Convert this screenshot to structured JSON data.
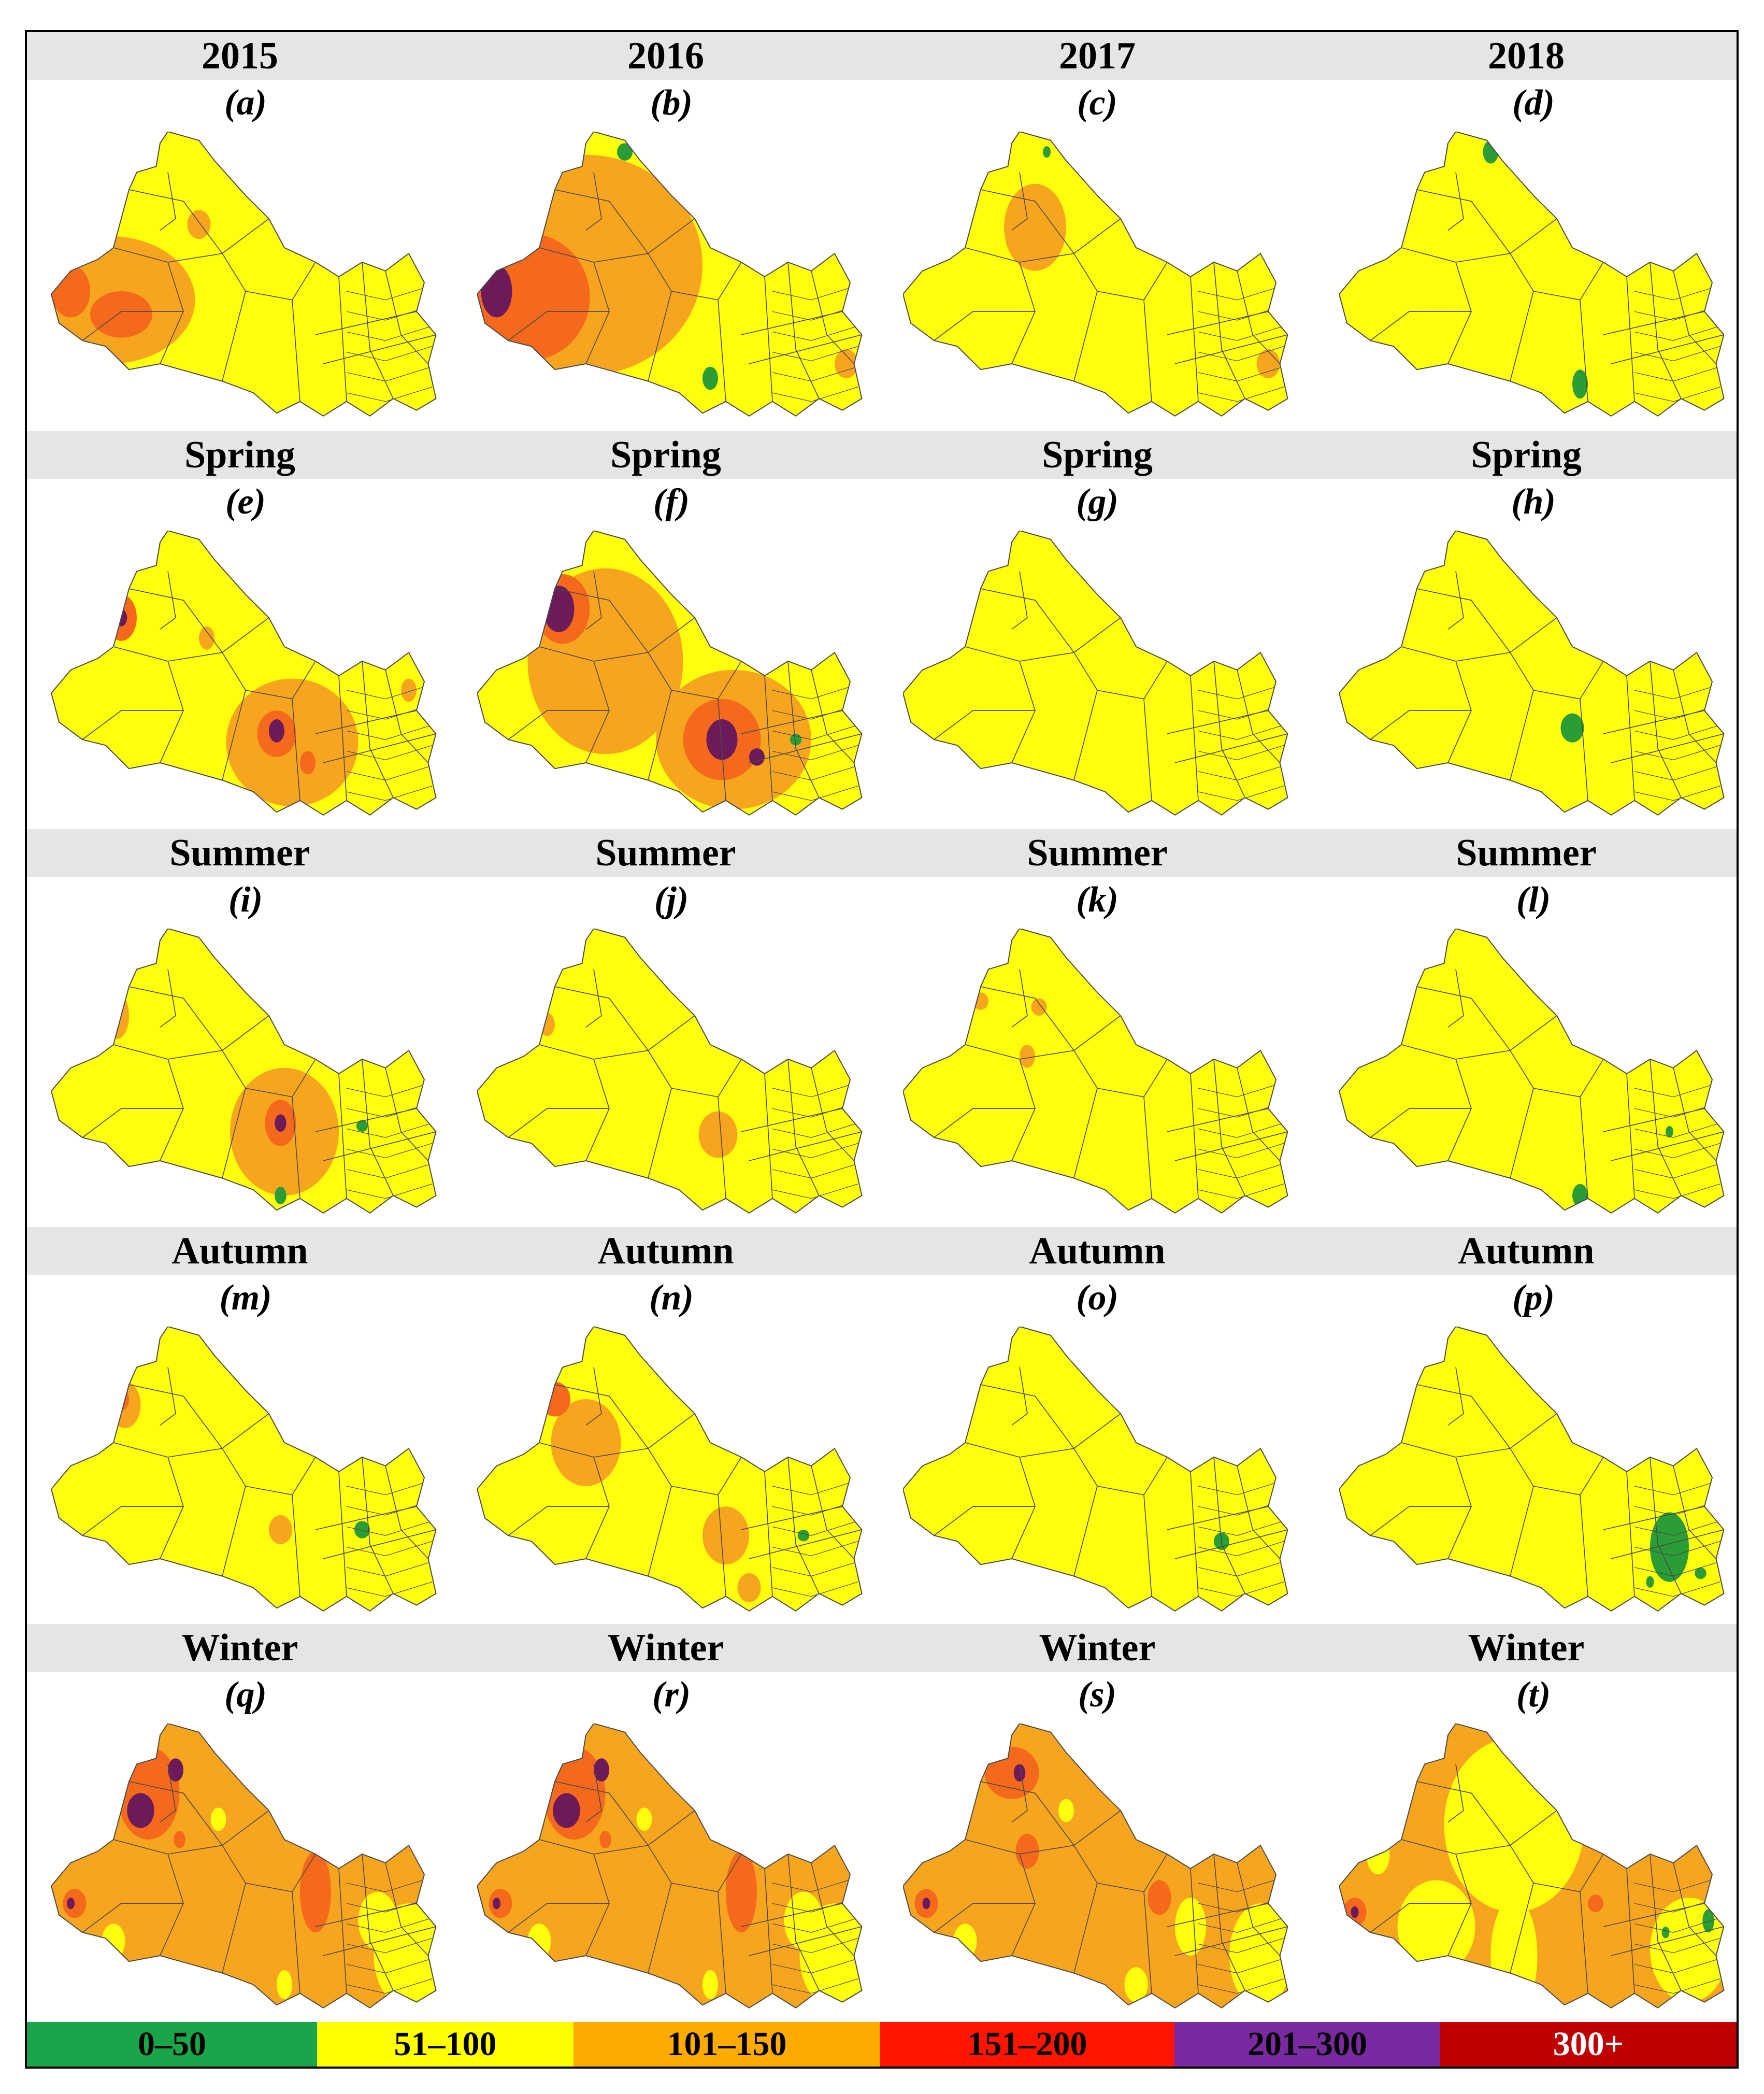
{
  "row_headers": [
    [
      "2015",
      "2016",
      "2017",
      "2018"
    ],
    [
      "Spring",
      "Spring",
      "Spring",
      "Spring"
    ],
    [
      "Summer",
      "Summer",
      "Summer",
      "Summer"
    ],
    [
      "Autumn",
      "Autumn",
      "Autumn",
      "Autumn"
    ],
    [
      "Winter",
      "Winter",
      "Winter",
      "Winter"
    ]
  ],
  "panels": [
    {
      "label": "(a)",
      "base": "yellow",
      "blobs": [
        [
          "orange",
          0.15,
          0.58,
          0.22,
          0.22
        ],
        [
          "orangered",
          0.18,
          0.63,
          0.08,
          0.08
        ],
        [
          "orangered",
          0.05,
          0.55,
          0.05,
          0.09
        ],
        [
          "orange",
          0.38,
          0.32,
          0.03,
          0.05
        ]
      ]
    },
    {
      "label": "(b)",
      "base": "yellow",
      "blobs": [
        [
          "orange",
          0.28,
          0.46,
          0.3,
          0.38
        ],
        [
          "orangered",
          0.13,
          0.57,
          0.16,
          0.22
        ],
        [
          "purple",
          0.05,
          0.55,
          0.04,
          0.09
        ],
        [
          "green",
          0.38,
          0.07,
          0.02,
          0.03
        ],
        [
          "green",
          0.6,
          0.85,
          0.02,
          0.04
        ],
        [
          "orange",
          0.95,
          0.8,
          0.03,
          0.05
        ]
      ]
    },
    {
      "label": "(c)",
      "base": "yellow",
      "blobs": [
        [
          "orange",
          0.34,
          0.33,
          0.08,
          0.15
        ],
        [
          "green",
          0.37,
          0.07,
          0.01,
          0.02
        ],
        [
          "orange",
          0.94,
          0.8,
          0.03,
          0.05
        ]
      ]
    },
    {
      "label": "(d)",
      "base": "yellow",
      "blobs": [
        [
          "green",
          0.39,
          0.07,
          0.02,
          0.04
        ],
        [
          "green",
          0.62,
          0.87,
          0.02,
          0.05
        ]
      ]
    },
    {
      "label": "(e)",
      "base": "yellow",
      "blobs": [
        [
          "orange",
          0.62,
          0.73,
          0.17,
          0.22
        ],
        [
          "orangered",
          0.58,
          0.7,
          0.05,
          0.08
        ],
        [
          "purple",
          0.58,
          0.69,
          0.02,
          0.04
        ],
        [
          "orangered",
          0.66,
          0.8,
          0.02,
          0.04
        ],
        [
          "orangered",
          0.18,
          0.3,
          0.04,
          0.08
        ],
        [
          "purple",
          0.18,
          0.3,
          0.015,
          0.03
        ],
        [
          "orange",
          0.4,
          0.37,
          0.02,
          0.04
        ],
        [
          "orange",
          0.92,
          0.55,
          0.02,
          0.04
        ]
      ]
    },
    {
      "label": "(f)",
      "base": "yellow",
      "blobs": [
        [
          "orange",
          0.33,
          0.45,
          0.2,
          0.32
        ],
        [
          "orange",
          0.66,
          0.72,
          0.2,
          0.24
        ],
        [
          "orangered",
          0.63,
          0.72,
          0.1,
          0.14
        ],
        [
          "purple",
          0.63,
          0.72,
          0.04,
          0.07
        ],
        [
          "orangered",
          0.22,
          0.27,
          0.07,
          0.12
        ],
        [
          "purple",
          0.21,
          0.27,
          0.04,
          0.08
        ],
        [
          "purple",
          0.72,
          0.78,
          0.02,
          0.03
        ],
        [
          "green",
          0.82,
          0.72,
          0.015,
          0.02
        ]
      ]
    },
    {
      "label": "(g)",
      "base": "yellow",
      "blobs": []
    },
    {
      "label": "(h)",
      "base": "yellow",
      "blobs": [
        [
          "green",
          0.6,
          0.68,
          0.03,
          0.05
        ]
      ]
    },
    {
      "label": "(i)",
      "base": "yellow",
      "blobs": [
        [
          "orange",
          0.6,
          0.7,
          0.14,
          0.22
        ],
        [
          "orangered",
          0.59,
          0.67,
          0.04,
          0.08
        ],
        [
          "purple",
          0.59,
          0.67,
          0.015,
          0.03
        ],
        [
          "orange",
          0.17,
          0.3,
          0.03,
          0.08
        ],
        [
          "green",
          0.59,
          0.92,
          0.015,
          0.03
        ],
        [
          "green",
          0.8,
          0.68,
          0.015,
          0.02
        ]
      ]
    },
    {
      "label": "(j)",
      "base": "yellow",
      "blobs": [
        [
          "orange",
          0.62,
          0.71,
          0.05,
          0.08
        ],
        [
          "orange",
          0.18,
          0.33,
          0.02,
          0.04
        ]
      ]
    },
    {
      "label": "(k)",
      "base": "yellow",
      "blobs": [
        [
          "orange",
          0.32,
          0.44,
          0.02,
          0.04
        ],
        [
          "orange",
          0.2,
          0.25,
          0.02,
          0.03
        ],
        [
          "orange",
          0.35,
          0.27,
          0.02,
          0.03
        ]
      ]
    },
    {
      "label": "(l)",
      "base": "yellow",
      "blobs": [
        [
          "green",
          0.62,
          0.92,
          0.02,
          0.04
        ],
        [
          "green",
          0.85,
          0.7,
          0.01,
          0.02
        ]
      ]
    },
    {
      "label": "(m)",
      "base": "yellow",
      "blobs": [
        [
          "orange",
          0.19,
          0.27,
          0.04,
          0.08
        ],
        [
          "orangered",
          0.18,
          0.25,
          0.02,
          0.04
        ],
        [
          "orange",
          0.59,
          0.7,
          0.03,
          0.05
        ],
        [
          "green",
          0.8,
          0.7,
          0.02,
          0.03
        ]
      ]
    },
    {
      "label": "(n)",
      "base": "yellow",
      "blobs": [
        [
          "orange",
          0.28,
          0.4,
          0.09,
          0.15
        ],
        [
          "orange",
          0.64,
          0.72,
          0.06,
          0.1
        ],
        [
          "orangered",
          0.2,
          0.25,
          0.04,
          0.06
        ],
        [
          "orange",
          0.7,
          0.9,
          0.03,
          0.05
        ],
        [
          "green",
          0.84,
          0.72,
          0.015,
          0.02
        ]
      ]
    },
    {
      "label": "(o)",
      "base": "yellow",
      "blobs": [
        [
          "green",
          0.82,
          0.74,
          0.02,
          0.03
        ]
      ]
    },
    {
      "label": "(p)",
      "base": "yellow",
      "blobs": [
        [
          "green",
          0.85,
          0.76,
          0.05,
          0.12
        ],
        [
          "green",
          0.93,
          0.85,
          0.015,
          0.02
        ],
        [
          "green",
          0.8,
          0.88,
          0.01,
          0.02
        ]
      ]
    },
    {
      "label": "(q)",
      "base": "orange",
      "blobs": [
        [
          "orangered",
          0.25,
          0.24,
          0.08,
          0.16
        ],
        [
          "purple",
          0.23,
          0.3,
          0.035,
          0.06
        ],
        [
          "purple",
          0.32,
          0.16,
          0.02,
          0.04
        ],
        [
          "orangered",
          0.33,
          0.4,
          0.015,
          0.03
        ],
        [
          "yellow",
          0.43,
          0.33,
          0.02,
          0.04
        ],
        [
          "orangered",
          0.06,
          0.62,
          0.03,
          0.05
        ],
        [
          "purple",
          0.05,
          0.62,
          0.01,
          0.02
        ],
        [
          "yellow",
          0.16,
          0.75,
          0.03,
          0.06
        ],
        [
          "orangered",
          0.68,
          0.58,
          0.04,
          0.14
        ],
        [
          "yellow",
          0.6,
          0.9,
          0.02,
          0.05
        ],
        [
          "yellow",
          0.92,
          0.8,
          0.09,
          0.18
        ],
        [
          "yellow",
          0.84,
          0.68,
          0.05,
          0.1
        ]
      ]
    },
    {
      "label": "(r)",
      "base": "orange",
      "blobs": [
        [
          "orangered",
          0.25,
          0.24,
          0.08,
          0.16
        ],
        [
          "purple",
          0.23,
          0.3,
          0.035,
          0.06
        ],
        [
          "purple",
          0.32,
          0.16,
          0.02,
          0.04
        ],
        [
          "orangered",
          0.33,
          0.4,
          0.015,
          0.03
        ],
        [
          "yellow",
          0.43,
          0.33,
          0.02,
          0.04
        ],
        [
          "orangered",
          0.06,
          0.62,
          0.03,
          0.05
        ],
        [
          "purple",
          0.05,
          0.62,
          0.01,
          0.02
        ],
        [
          "yellow",
          0.16,
          0.75,
          0.03,
          0.06
        ],
        [
          "orangered",
          0.68,
          0.58,
          0.04,
          0.14
        ],
        [
          "yellow",
          0.6,
          0.9,
          0.02,
          0.05
        ],
        [
          "yellow",
          0.92,
          0.8,
          0.09,
          0.18
        ],
        [
          "yellow",
          0.84,
          0.68,
          0.05,
          0.1
        ]
      ]
    },
    {
      "label": "(s)",
      "base": "orange",
      "blobs": [
        [
          "orangered",
          0.28,
          0.17,
          0.07,
          0.09
        ],
        [
          "purple",
          0.3,
          0.17,
          0.015,
          0.03
        ],
        [
          "orangered",
          0.32,
          0.44,
          0.03,
          0.06
        ],
        [
          "yellow",
          0.42,
          0.3,
          0.02,
          0.04
        ],
        [
          "orangered",
          0.06,
          0.62,
          0.03,
          0.05
        ],
        [
          "purple",
          0.06,
          0.62,
          0.01,
          0.02
        ],
        [
          "yellow",
          0.16,
          0.75,
          0.03,
          0.06
        ],
        [
          "orangered",
          0.66,
          0.6,
          0.03,
          0.06
        ],
        [
          "yellow",
          0.6,
          0.9,
          0.03,
          0.06
        ],
        [
          "yellow",
          0.92,
          0.8,
          0.08,
          0.18
        ],
        [
          "yellow",
          0.74,
          0.7,
          0.04,
          0.1
        ]
      ]
    },
    {
      "label": "(t)",
      "base": "orange",
      "blobs": [
        [
          "yellow",
          0.45,
          0.35,
          0.18,
          0.3
        ],
        [
          "yellow",
          0.25,
          0.7,
          0.1,
          0.16
        ],
        [
          "yellow",
          0.45,
          0.8,
          0.06,
          0.2
        ],
        [
          "yellow",
          0.1,
          0.45,
          0.03,
          0.07
        ],
        [
          "orangered",
          0.04,
          0.65,
          0.03,
          0.05
        ],
        [
          "purple",
          0.04,
          0.65,
          0.01,
          0.02
        ],
        [
          "yellow",
          0.9,
          0.78,
          0.1,
          0.18
        ],
        [
          "green",
          0.95,
          0.68,
          0.015,
          0.04
        ],
        [
          "orangered",
          0.66,
          0.62,
          0.02,
          0.03
        ],
        [
          "green",
          0.84,
          0.72,
          0.01,
          0.02
        ]
      ]
    }
  ],
  "legend": [
    {
      "label": "0–50",
      "color": "#1aa54a",
      "text": "#000000"
    },
    {
      "label": "51–100",
      "color": "#ffff00",
      "text": "#000000"
    },
    {
      "label": "101–150",
      "color": "#ffaa00",
      "text": "#000000"
    },
    {
      "label": "151–200",
      "color": "#ff1500",
      "text": "#000000"
    },
    {
      "label": "201–300",
      "color": "#7a2aa0",
      "text": "#000000"
    },
    {
      "label": "300+",
      "color": "#c00000",
      "text": "#ffffff"
    }
  ],
  "colors": {
    "yellow": "#ffff0d",
    "orange": "#f7a51e",
    "orangered": "#f4691b",
    "purple": "#6d1a5a",
    "green": "#2a9d36",
    "region_stroke": "#4a4a4a"
  }
}
